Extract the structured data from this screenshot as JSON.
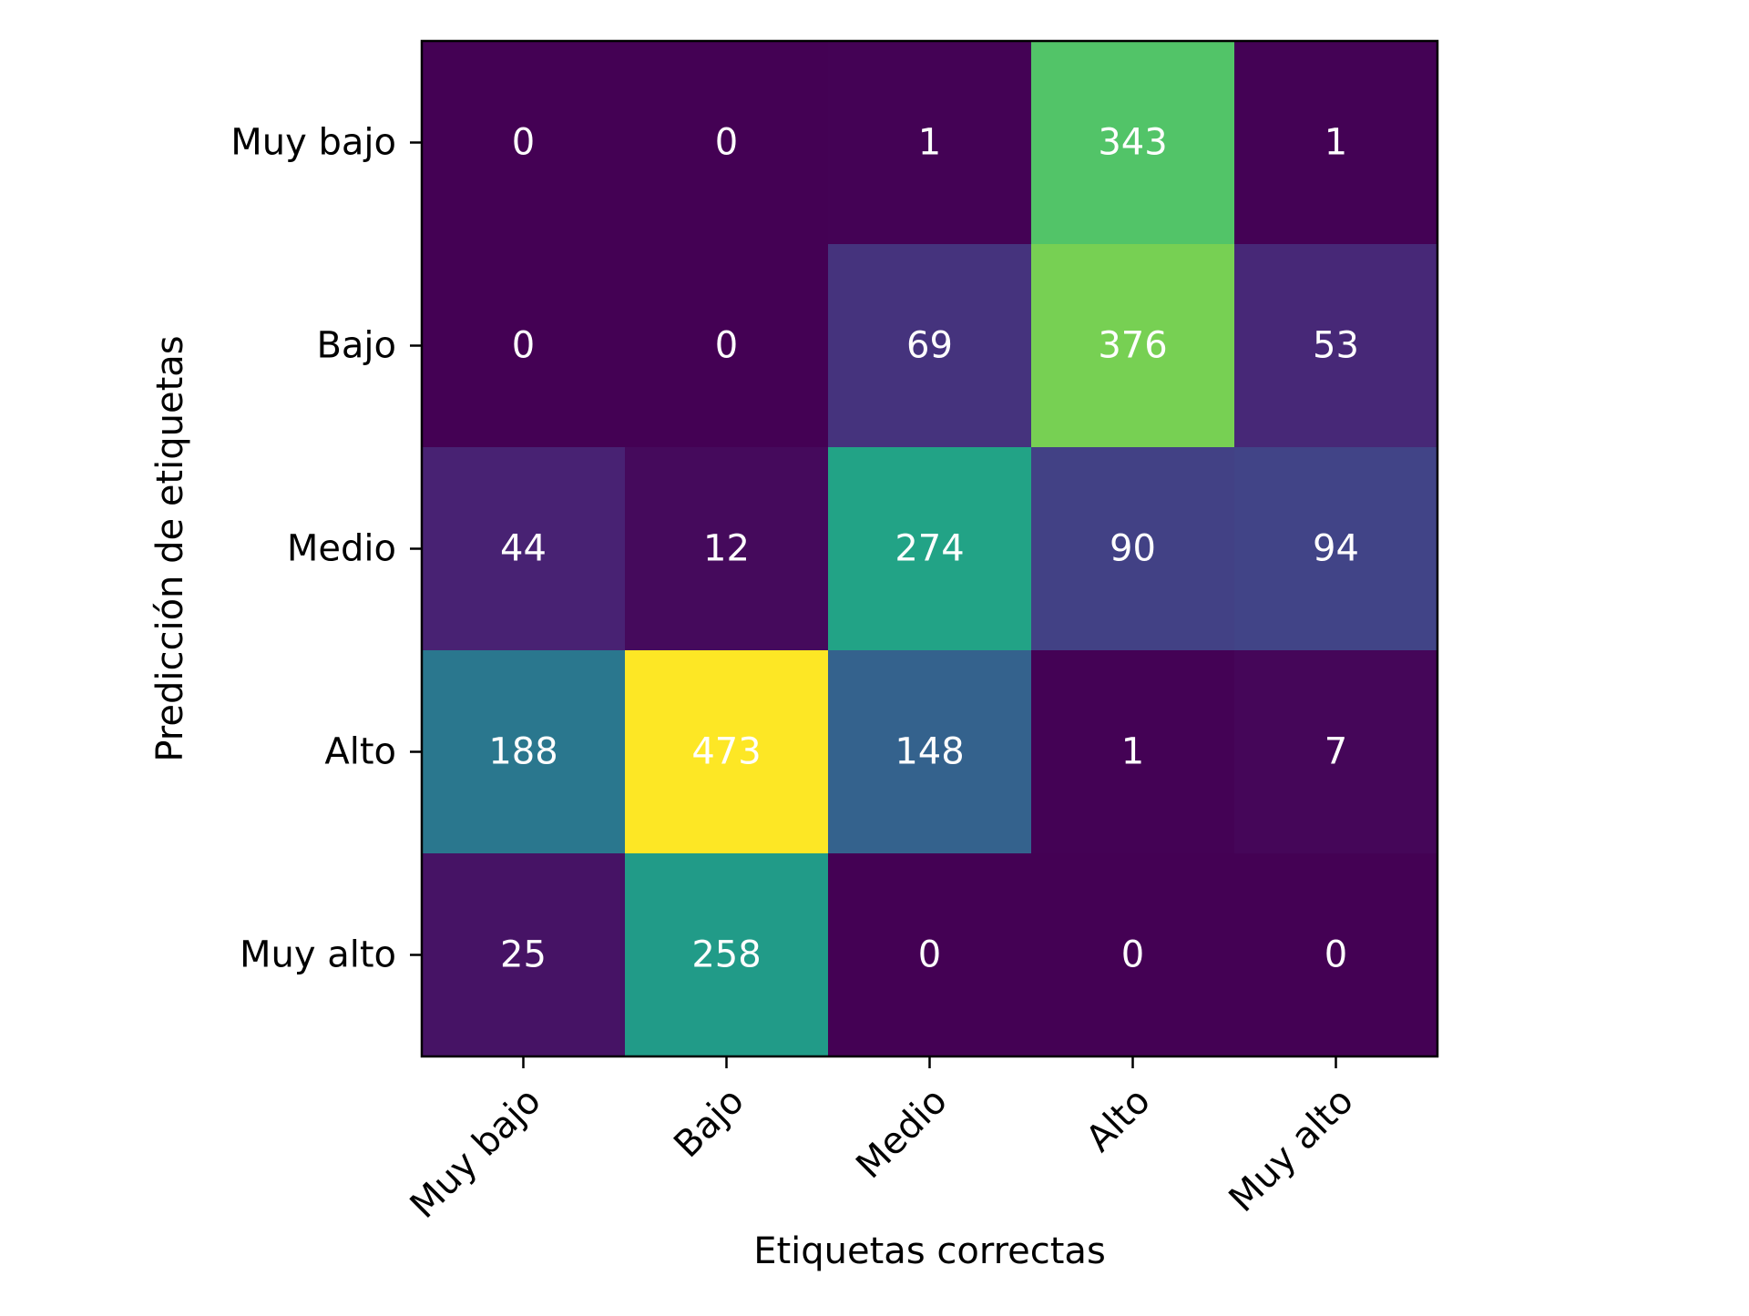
{
  "chart_data": {
    "type": "heatmap",
    "title": "",
    "xlabel": "Etiquetas correctas",
    "ylabel": "Predicción de etiquetas",
    "x_categories": [
      "Muy bajo",
      "Bajo",
      "Medio",
      "Alto",
      "Muy alto"
    ],
    "y_categories": [
      "Muy bajo",
      "Bajo",
      "Medio",
      "Alto",
      "Muy alto"
    ],
    "values": [
      [
        0,
        0,
        1,
        343,
        1
      ],
      [
        0,
        0,
        69,
        376,
        53
      ],
      [
        44,
        12,
        274,
        90,
        94
      ],
      [
        188,
        473,
        148,
        1,
        7
      ],
      [
        25,
        258,
        0,
        0,
        0
      ]
    ],
    "value_range": [
      0,
      473
    ],
    "colormap": "viridis",
    "annotation_color": "#ffffff",
    "grid": false,
    "legend": "none"
  }
}
